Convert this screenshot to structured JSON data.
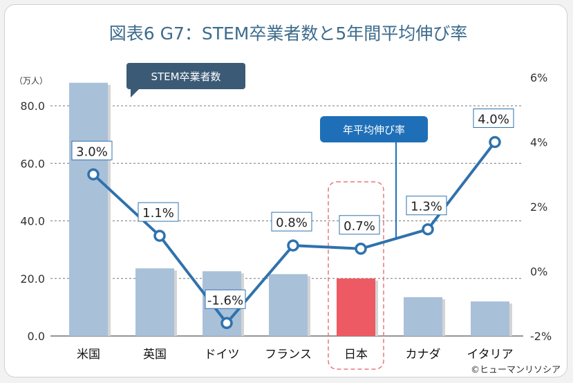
{
  "chart_data": {
    "type": "bar",
    "title": "図表6 G7：STEM卒業者数と5年間平均伸び率",
    "y_left_unit": "（万人）",
    "categories": [
      "米国",
      "英国",
      "ドイツ",
      "フランス",
      "日本",
      "カナダ",
      "イタリア"
    ],
    "series": [
      {
        "name": "STEM卒業者数",
        "type": "bar",
        "axis": "left",
        "values": [
          88.0,
          23.5,
          22.5,
          21.5,
          20.0,
          13.5,
          12.0
        ]
      },
      {
        "name": "年平均伸び率",
        "type": "line",
        "axis": "right",
        "values": [
          3.0,
          1.1,
          -1.6,
          0.8,
          0.7,
          1.3,
          4.0
        ],
        "labels": [
          "3.0%",
          "1.1%",
          "-1.6%",
          "0.8%",
          "0.7%",
          "1.3%",
          "4.0%"
        ]
      }
    ],
    "y_left": {
      "min": 0,
      "max": 80,
      "ticks": [
        "0.0",
        "20.0",
        "40.0",
        "60.0",
        "80.0"
      ]
    },
    "y_right": {
      "min": -2,
      "max": 6,
      "ticks": [
        "-2%",
        "0%",
        "2%",
        "4%",
        "6%"
      ]
    },
    "gridlines": "dashed",
    "highlight_category": "日本",
    "colors": {
      "bar": "#a9c0d9",
      "bar_highlight": "#ee5a63",
      "line": "#2f72ad",
      "callout_bar": "#3b5a75",
      "callout_line": "#1e6fb8",
      "title": "#3c6b8c",
      "highlight_box": "#e8767b"
    }
  },
  "credit": "©ヒューマンリソシア"
}
